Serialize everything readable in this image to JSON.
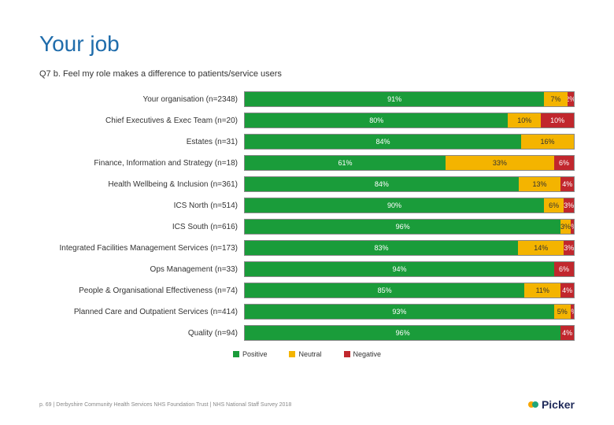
{
  "title": "Your job",
  "subtitle": "Q7 b. Feel my role makes a difference to patients/service users",
  "colors": {
    "positive": "#1a9c3a",
    "neutral": "#f4b400",
    "negative": "#c1272d"
  },
  "legend": {
    "positive": "Positive",
    "neutral": "Neutral",
    "negative": "Negative"
  },
  "rows": [
    {
      "label": "Your organisation (n=2348)",
      "pos": 91,
      "neu": 7,
      "neg": 2,
      "pos_t": "91%",
      "neu_t": "7%",
      "neg_t": "2%"
    },
    {
      "label": "Chief Executives & Exec Team (n=20)",
      "pos": 80,
      "neu": 10,
      "neg": 10,
      "pos_t": "80%",
      "neu_t": "10%",
      "neg_t": "10%"
    },
    {
      "label": "Estates (n=31)",
      "pos": 84,
      "neu": 16,
      "neg": 0,
      "pos_t": "84%",
      "neu_t": "16%",
      "neg_t": ""
    },
    {
      "label": "Finance, Information and Strategy (n=18)",
      "pos": 61,
      "neu": 33,
      "neg": 6,
      "pos_t": "61%",
      "neu_t": "33%",
      "neg_t": "6%"
    },
    {
      "label": "Health Wellbeing & Inclusion (n=361)",
      "pos": 84,
      "neu": 13,
      "neg": 4,
      "pos_t": "84%",
      "neu_t": "13%",
      "neg_t": "4%"
    },
    {
      "label": "ICS North (n=514)",
      "pos": 90,
      "neu": 6,
      "neg": 3,
      "pos_t": "90%",
      "neu_t": "6%",
      "neg_t": "3%"
    },
    {
      "label": "ICS South (n=616)",
      "pos": 96,
      "neu": 3,
      "neg": 1,
      "pos_t": "96%",
      "neu_t": "3%",
      "neg_t": "1%"
    },
    {
      "label": "Integrated Facilities Management Services (n=173)",
      "pos": 83,
      "neu": 14,
      "neg": 3,
      "pos_t": "83%",
      "neu_t": "14%",
      "neg_t": "3%"
    },
    {
      "label": "Ops Management (n=33)",
      "pos": 94,
      "neu": 0,
      "neg": 6,
      "pos_t": "94%",
      "neu_t": "",
      "neg_t": "6%"
    },
    {
      "label": "People & Organisational Effectiveness (n=74)",
      "pos": 85,
      "neu": 11,
      "neg": 4,
      "pos_t": "85%",
      "neu_t": "11%",
      "neg_t": "4%"
    },
    {
      "label": "Planned Care and Outpatient Services (n=414)",
      "pos": 93,
      "neu": 5,
      "neg": 1,
      "pos_t": "93%",
      "neu_t": "5%",
      "neg_t": "1%"
    },
    {
      "label": "Quality (n=94)",
      "pos": 96,
      "neu": 0,
      "neg": 4,
      "pos_t": "96%",
      "neu_t": "",
      "neg_t": "4%"
    }
  ],
  "footer": "p. 69 | Derbyshire Community Health Services NHS Foundation Trust | NHS National Staff Survey 2018",
  "logo_text": "Picker"
}
